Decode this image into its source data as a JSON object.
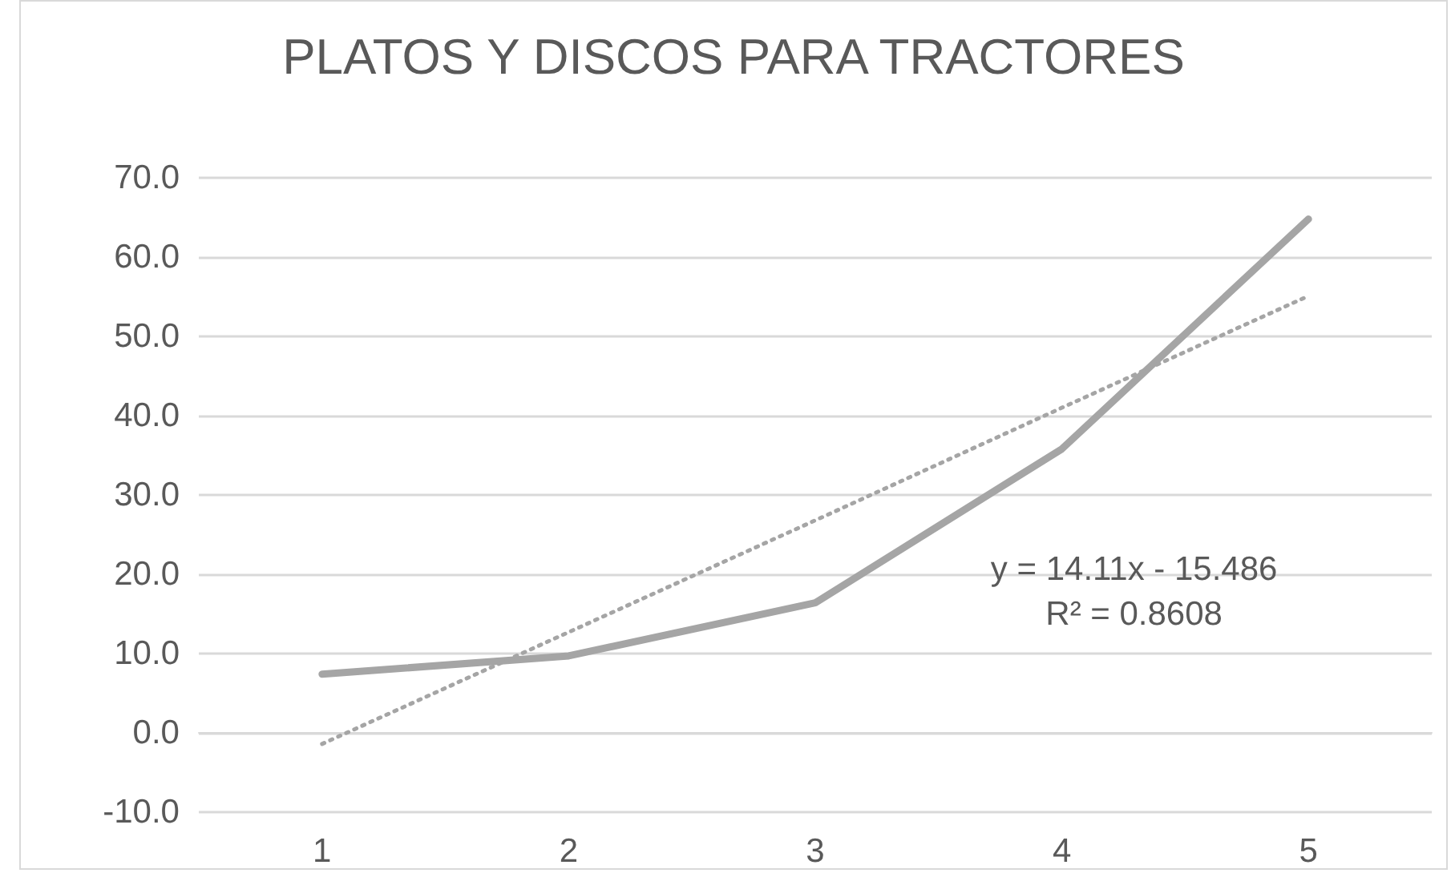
{
  "chart_data": {
    "type": "line",
    "title": "PLATOS Y DISCOS PARA TRACTORES",
    "categories": [
      "1",
      "2",
      "3",
      "4",
      "5"
    ],
    "series": [
      {
        "color": "#a5a5a5",
        "values": [
          7.4,
          9.7,
          16.4,
          35.8,
          64.8
        ]
      },
      {
        "color": "#a5a5a5",
        "values": [
          -1.4,
          12.7,
          26.8,
          41.0,
          55.1
        ],
        "line_style": "dotted",
        "x": [
          "1",
          "2",
          "3",
          "4",
          "5"
        ]
      }
    ],
    "annotations": [
      "y = 14.11x - 15.486\nR² = 0.8608"
    ],
    "ylim": [
      -10,
      70
    ],
    "yticks": [
      {
        "value": -10,
        "label": "-10.0"
      },
      {
        "value": 0,
        "label": "0.0"
      },
      {
        "value": 10,
        "label": "10.0"
      },
      {
        "value": 20,
        "label": "20.0"
      },
      {
        "value": 30,
        "label": "30.0"
      },
      {
        "value": 40,
        "label": "40.0"
      },
      {
        "value": 50,
        "label": "50.0"
      },
      {
        "value": 60,
        "label": "60.0"
      },
      {
        "value": 70,
        "label": "70.0"
      }
    ],
    "grid": "y",
    "marker": "none",
    "line_style": "solid"
  }
}
